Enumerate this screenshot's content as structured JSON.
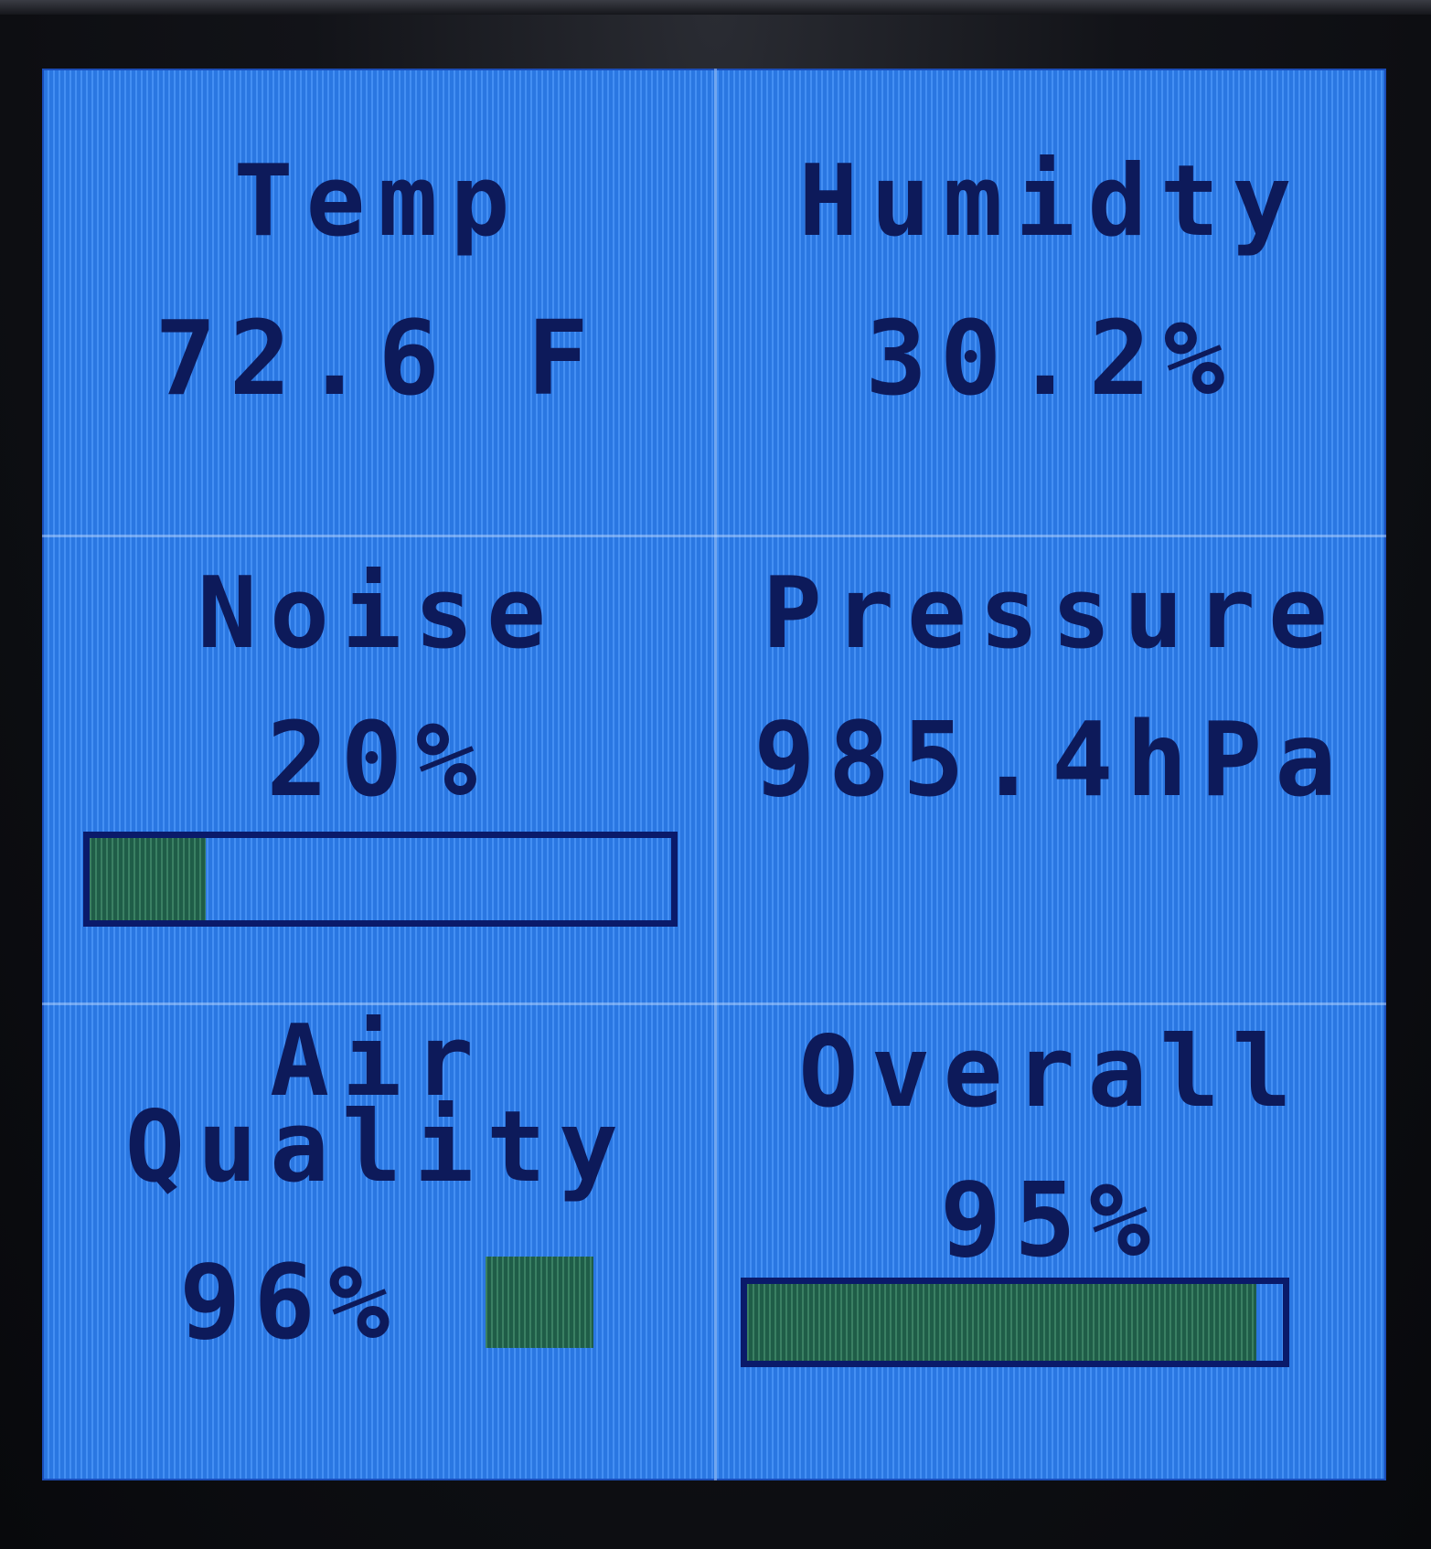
{
  "temp": {
    "label": "Temp",
    "value": "72.6 F"
  },
  "humidity": {
    "label": "Humidty",
    "value": "30.2%"
  },
  "noise": {
    "label": "Noise",
    "value": "20%",
    "level": 0.2
  },
  "pressure": {
    "label": "Pressure",
    "value": "985.4hPa"
  },
  "air_quality": {
    "label_line1": "Air",
    "label_line2": "Quality",
    "value": "96%",
    "status_color": "#1f5d48"
  },
  "overall": {
    "label": "Overall",
    "value": "95%",
    "level": 0.95
  },
  "colors": {
    "screen_bg": "#2f82f2",
    "text": "#0d1a5a",
    "bar_fill": "#1f5d48",
    "bar_border": "#0a1a6a"
  }
}
